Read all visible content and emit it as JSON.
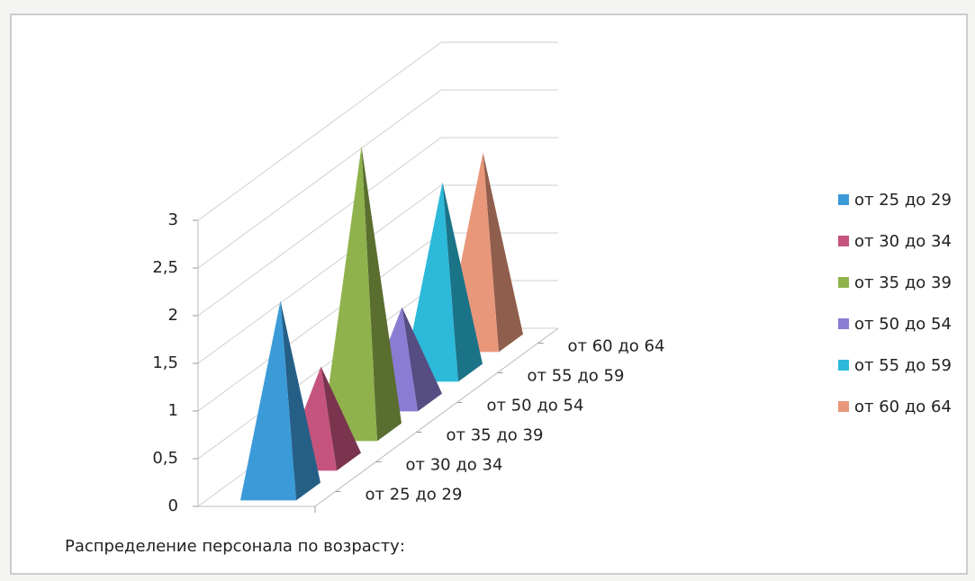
{
  "chart_data": {
    "type": "pyramid3d",
    "title": "Распределение персонала по возрасту:",
    "categories": [
      "от 25 до 29",
      "от 30 до 34",
      "от 35 до 39",
      "от 50 до 54",
      "от 55 до 59",
      "от 60 до 64"
    ],
    "values": [
      2,
      1,
      3,
      1,
      2,
      2
    ],
    "colors": [
      "#3b9ad8",
      "#c4547e",
      "#8fb24c",
      "#8a7cd2",
      "#2cb9da",
      "#e9977b"
    ],
    "ylim": [
      0,
      3
    ],
    "yticks": [
      0,
      {
        "value": 0.5,
        "label": "0,5"
      },
      1,
      {
        "value": 1.5,
        "label": "1,5"
      },
      2,
      {
        "value": 2.5,
        "label": "2,5"
      },
      3
    ],
    "grid": true,
    "legend": "right"
  }
}
